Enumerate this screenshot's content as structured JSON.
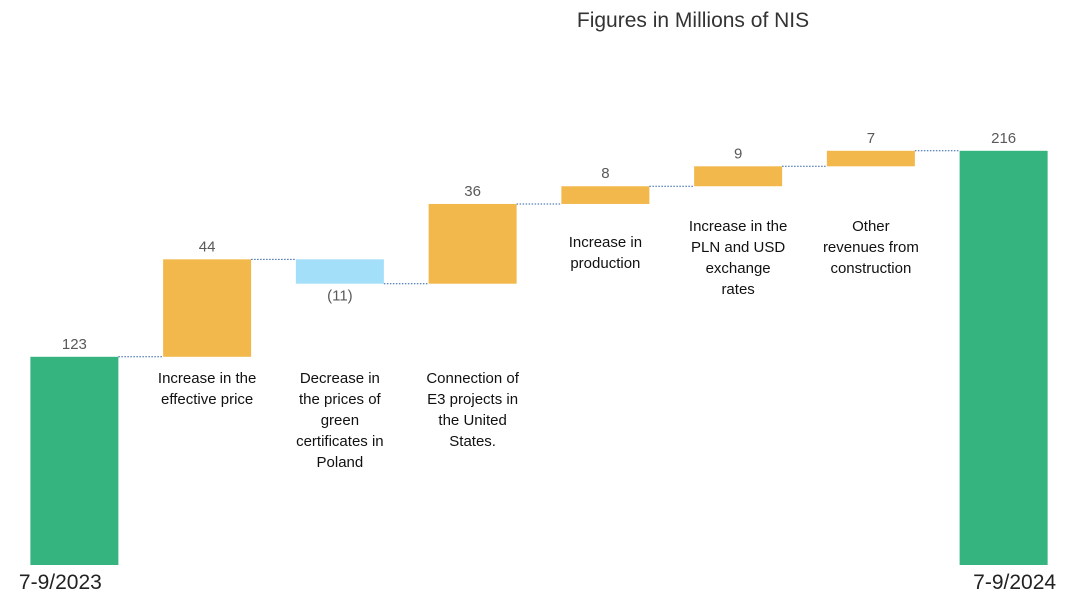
{
  "chart_data": {
    "type": "waterfall",
    "title": "Figures in Millions of NIS",
    "categories": [
      "7-9/2023",
      "Increase in the effective price",
      "Decrease in the prices of green certificates in Poland",
      "Connection of E3 projects in the United States.",
      "Increase in production",
      "Increase in the PLN and USD exchange rates",
      "Other revenues from construction",
      "7-9/2024"
    ],
    "values": [
      123,
      44,
      -11,
      36,
      8,
      9,
      7,
      216
    ],
    "value_labels": [
      "123",
      "44",
      "(11)",
      "36",
      "8",
      "9",
      "7",
      "216"
    ],
    "total": [
      true,
      false,
      false,
      false,
      false,
      false,
      false,
      true
    ],
    "colors": [
      "#35b47f",
      "#f2b84b",
      "#a3dff9",
      "#f2b84b",
      "#f2b84b",
      "#f2b84b",
      "#f2b84b",
      "#35b47f"
    ],
    "ylim": [
      29,
      250
    ]
  }
}
